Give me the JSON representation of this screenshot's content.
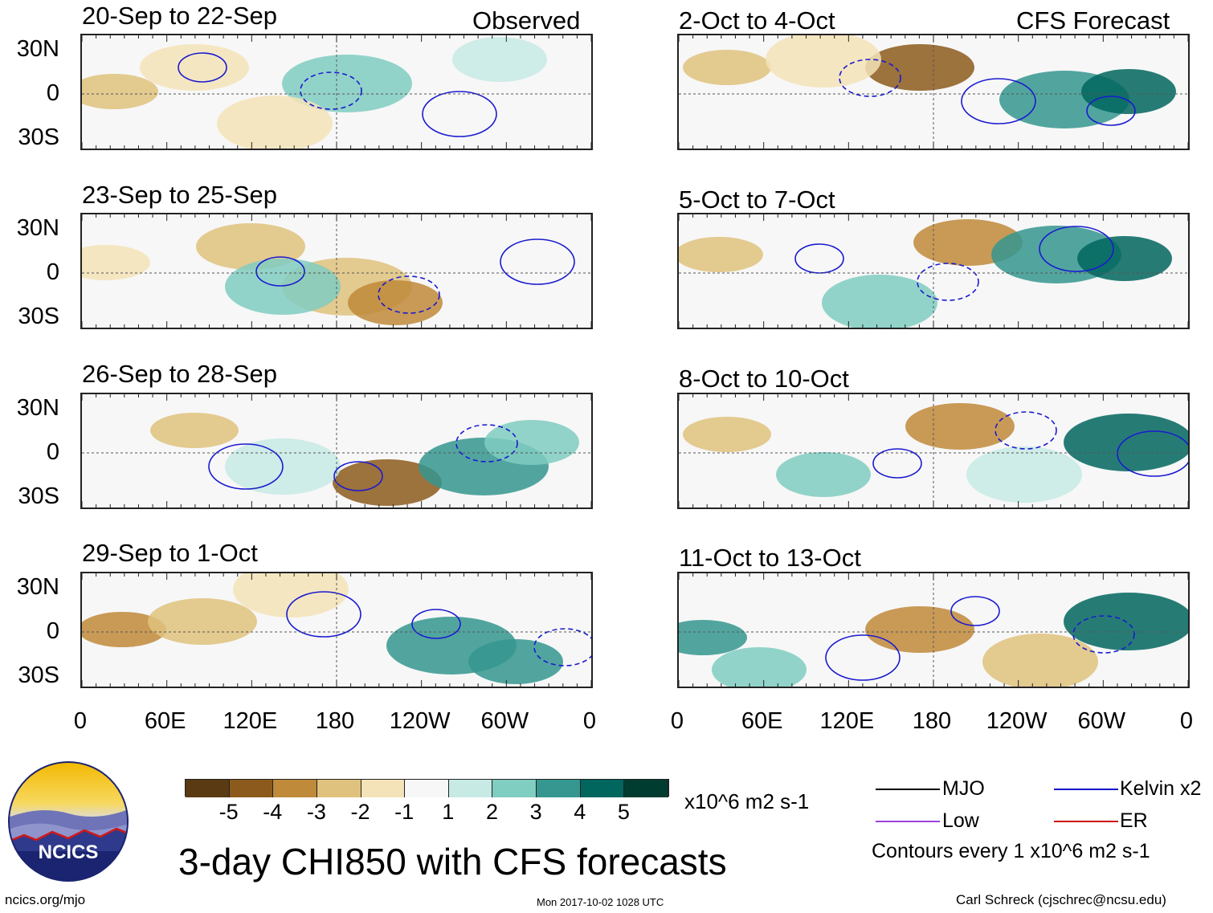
{
  "chart_data": {
    "type": "heatmap",
    "title": "3-day CHI850 with CFS forecasts",
    "units": "x10^6 m2 s-1",
    "columns": {
      "left": "Observed",
      "right": "CFS Forecast"
    },
    "panels_left": [
      {
        "label": "20-Sep to 22-Sep"
      },
      {
        "label": "23-Sep to 25-Sep"
      },
      {
        "label": "26-Sep to 28-Sep"
      },
      {
        "label": "29-Sep to 1-Oct"
      }
    ],
    "panels_right": [
      {
        "label": "2-Oct to 4-Oct"
      },
      {
        "label": "5-Oct to 7-Oct"
      },
      {
        "label": "8-Oct to 10-Oct"
      },
      {
        "label": "11-Oct to 13-Oct"
      }
    ],
    "lat_ticks": [
      "30N",
      "0",
      "30S"
    ],
    "lon_ticks": [
      "0",
      "60E",
      "120E",
      "180",
      "120W",
      "60W",
      "0"
    ],
    "colorbar": {
      "labels": [
        "-5",
        "-4",
        "-3",
        "-2",
        "-1",
        "1",
        "2",
        "3",
        "4",
        "5"
      ],
      "colors": [
        "#5a3a12",
        "#8c5a1c",
        "#bf8a3a",
        "#dfc27d",
        "#f4e3b8",
        "#f7f7f7",
        "#c7eae5",
        "#80cdc1",
        "#35978f",
        "#01665e",
        "#003c30"
      ]
    },
    "legend": [
      {
        "name": "MJO",
        "color": "#000000"
      },
      {
        "name": "Kelvin x2",
        "color": "#1010cc"
      },
      {
        "name": "Low",
        "color": "#a040e0"
      },
      {
        "name": "ER",
        "color": "#cc1010"
      }
    ],
    "contour_note": "Contours every 1 x10^6 m2 s-1"
  },
  "footer": {
    "logo_text": "NCICS",
    "url": "ncics.org/mjo",
    "timestamp": "Mon 2017-10-02 1028 UTC",
    "credit": "Carl Schreck (cjschrec@ncsu.edu)"
  }
}
